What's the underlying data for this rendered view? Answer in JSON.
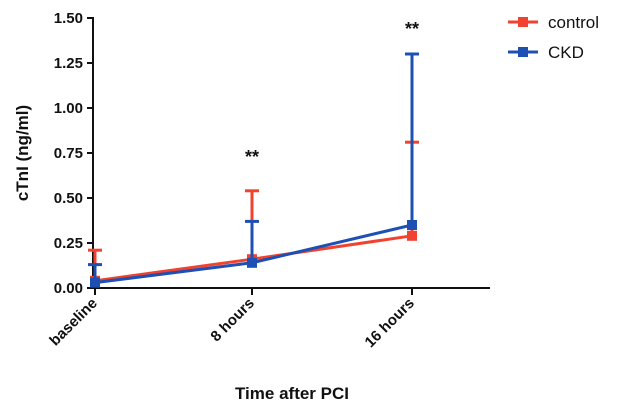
{
  "chart_data": {
    "type": "line",
    "categories": [
      "baseline",
      "8 hours",
      "16 hours"
    ],
    "xlabel": "Time after PCI",
    "ylabel": "cTnI (ng/ml)",
    "ylim": [
      0,
      1.5
    ],
    "yticks": [
      "0.00",
      "0.25",
      "0.50",
      "0.75",
      "1.00",
      "1.25",
      "1.50"
    ],
    "grid": false,
    "legend_position": "top-right",
    "series": [
      {
        "name": "control",
        "color": "#f0422f",
        "marker": "square",
        "values": [
          0.04,
          0.16,
          0.29
        ],
        "error_upper": [
          0.21,
          0.54,
          0.81
        ]
      },
      {
        "name": "CKD",
        "color": "#1e50b4",
        "marker": "square",
        "values": [
          0.03,
          0.14,
          0.35
        ],
        "error_upper": [
          0.13,
          0.37,
          1.3
        ]
      }
    ],
    "annotations": [
      {
        "category": "8 hours",
        "text": "**",
        "y": 0.74
      },
      {
        "category": "16 hours",
        "text": "**",
        "y": 1.45
      }
    ]
  }
}
